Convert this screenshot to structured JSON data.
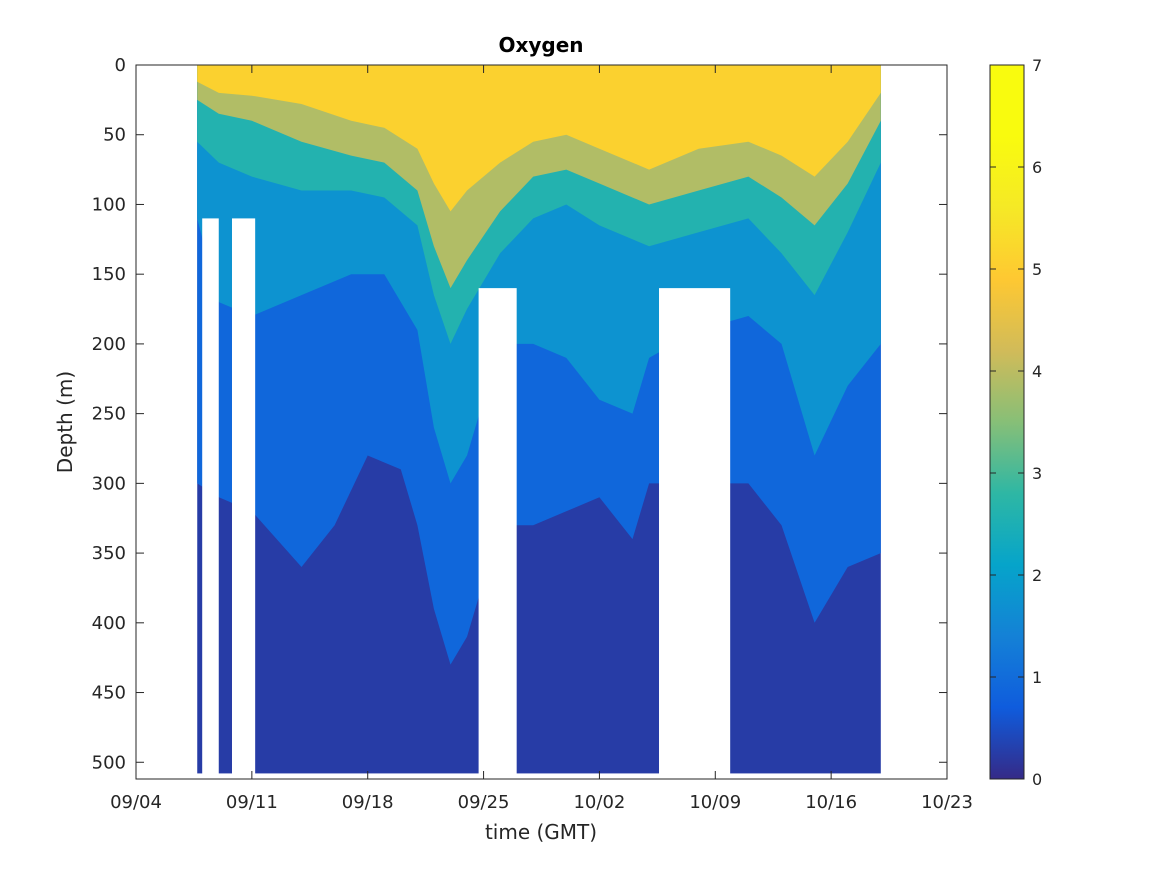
{
  "chart_data": {
    "type": "heatmap",
    "title": "Oxygen",
    "xlabel": "time (GMT)",
    "ylabel": "Depth (m)",
    "xlim": [
      "2024-09-04",
      "2024-10-23"
    ],
    "x_tick_labels": [
      "09/04",
      "09/11",
      "09/18",
      "09/25",
      "10/02",
      "10/09",
      "10/16",
      "10/23"
    ],
    "ylim": [
      0,
      512
    ],
    "y_reversed": true,
    "y_ticks": [
      0,
      50,
      100,
      150,
      200,
      250,
      300,
      350,
      400,
      450,
      500
    ],
    "colorbar": {
      "limits": [
        0,
        7
      ],
      "ticks": [
        0,
        1,
        2,
        3,
        4,
        5,
        6,
        7
      ],
      "colormap": "parula"
    },
    "data_gaps": [
      {
        "start": "2024-09-08",
        "end": "2024-09-09",
        "from_depth": 110
      },
      {
        "start": "2024-09-09.8",
        "end": "2024-09-11.2",
        "from_depth": 110
      },
      {
        "start": "2024-09-24.7",
        "end": "2024-09-27",
        "from_depth": 160
      },
      {
        "start": "2024-10-05.6",
        "end": "2024-10-09.9",
        "from_depth": 160
      }
    ],
    "profile_start": "2024-09-07.7",
    "profile_end": "2024-10-19",
    "level_boundaries": [
      {
        "level": "5-6 / 4-5",
        "oxygen_threshold": 4.5,
        "points": [
          [
            "2024-09-07.7",
            12
          ],
          [
            "2024-09-09",
            20
          ],
          [
            "2024-09-11",
            22
          ],
          [
            "2024-09-14",
            28
          ],
          [
            "2024-09-17",
            40
          ],
          [
            "2024-09-19",
            45
          ],
          [
            "2024-09-21",
            60
          ],
          [
            "2024-09-22",
            85
          ],
          [
            "2024-09-23",
            105
          ],
          [
            "2024-09-24",
            90
          ],
          [
            "2024-09-26",
            70
          ],
          [
            "2024-09-28",
            55
          ],
          [
            "2024-09-30",
            50
          ],
          [
            "2024-10-02",
            60
          ],
          [
            "2024-10-05",
            75
          ],
          [
            "2024-10-08",
            60
          ],
          [
            "2024-10-11",
            55
          ],
          [
            "2024-10-13",
            65
          ],
          [
            "2024-10-15",
            80
          ],
          [
            "2024-10-17",
            55
          ],
          [
            "2024-10-19",
            20
          ]
        ]
      },
      {
        "level": "4-5 / 3-4",
        "oxygen_threshold": 3.5,
        "points": [
          [
            "2024-09-07.7",
            25
          ],
          [
            "2024-09-09",
            35
          ],
          [
            "2024-09-11",
            40
          ],
          [
            "2024-09-14",
            55
          ],
          [
            "2024-09-17",
            65
          ],
          [
            "2024-09-19",
            70
          ],
          [
            "2024-09-21",
            90
          ],
          [
            "2024-09-22",
            130
          ],
          [
            "2024-09-23",
            160
          ],
          [
            "2024-09-24",
            140
          ],
          [
            "2024-09-26",
            105
          ],
          [
            "2024-09-28",
            80
          ],
          [
            "2024-09-30",
            75
          ],
          [
            "2024-10-02",
            85
          ],
          [
            "2024-10-05",
            100
          ],
          [
            "2024-10-08",
            90
          ],
          [
            "2024-10-11",
            80
          ],
          [
            "2024-10-13",
            95
          ],
          [
            "2024-10-15",
            115
          ],
          [
            "2024-10-17",
            85
          ],
          [
            "2024-10-19",
            40
          ]
        ]
      },
      {
        "level": "3-4 / 2-3",
        "oxygen_threshold": 2.5,
        "points": [
          [
            "2024-09-07.7",
            55
          ],
          [
            "2024-09-09",
            70
          ],
          [
            "2024-09-11",
            80
          ],
          [
            "2024-09-14",
            90
          ],
          [
            "2024-09-17",
            90
          ],
          [
            "2024-09-19",
            95
          ],
          [
            "2024-09-21",
            115
          ],
          [
            "2024-09-22",
            165
          ],
          [
            "2024-09-23",
            200
          ],
          [
            "2024-09-24",
            175
          ],
          [
            "2024-09-26",
            135
          ],
          [
            "2024-09-28",
            110
          ],
          [
            "2024-09-30",
            100
          ],
          [
            "2024-10-02",
            115
          ],
          [
            "2024-10-05",
            130
          ],
          [
            "2024-10-08",
            120
          ],
          [
            "2024-10-11",
            110
          ],
          [
            "2024-10-13",
            135
          ],
          [
            "2024-10-15",
            165
          ],
          [
            "2024-10-17",
            120
          ],
          [
            "2024-10-19",
            70
          ]
        ]
      },
      {
        "level": "2-3 / 1-2",
        "oxygen_threshold": 1.5,
        "points": [
          [
            "2024-09-07.7",
            110
          ],
          [
            "2024-09-09",
            170
          ],
          [
            "2024-09-11",
            180
          ],
          [
            "2024-09-14",
            165
          ],
          [
            "2024-09-17",
            150
          ],
          [
            "2024-09-19",
            150
          ],
          [
            "2024-09-21",
            190
          ],
          [
            "2024-09-22",
            260
          ],
          [
            "2024-09-23",
            300
          ],
          [
            "2024-09-24",
            280
          ],
          [
            "2024-09-26",
            200
          ],
          [
            "2024-09-28",
            200
          ],
          [
            "2024-09-30",
            210
          ],
          [
            "2024-10-02",
            240
          ],
          [
            "2024-10-04",
            250
          ],
          [
            "2024-10-05",
            210
          ],
          [
            "2024-10-08",
            190
          ],
          [
            "2024-10-11",
            180
          ],
          [
            "2024-10-13",
            200
          ],
          [
            "2024-10-15",
            280
          ],
          [
            "2024-10-17",
            230
          ],
          [
            "2024-10-19",
            200
          ]
        ]
      },
      {
        "level": "1-2 / 0-1",
        "oxygen_threshold": 0.5,
        "points": [
          [
            "2024-09-07.7",
            300
          ],
          [
            "2024-09-09",
            310
          ],
          [
            "2024-09-11",
            320
          ],
          [
            "2024-09-14",
            360
          ],
          [
            "2024-09-16",
            330
          ],
          [
            "2024-09-18",
            280
          ],
          [
            "2024-09-20",
            290
          ],
          [
            "2024-09-21",
            330
          ],
          [
            "2024-09-22",
            390
          ],
          [
            "2024-09-23",
            430
          ],
          [
            "2024-09-24",
            410
          ],
          [
            "2024-09-26",
            330
          ],
          [
            "2024-09-28",
            330
          ],
          [
            "2024-09-30",
            320
          ],
          [
            "2024-10-02",
            310
          ],
          [
            "2024-10-04",
            340
          ],
          [
            "2024-10-05",
            300
          ],
          [
            "2024-10-08",
            300
          ],
          [
            "2024-10-11",
            300
          ],
          [
            "2024-10-13",
            330
          ],
          [
            "2024-10-15",
            400
          ],
          [
            "2024-10-17",
            360
          ],
          [
            "2024-10-19",
            350
          ]
        ]
      }
    ],
    "max_depth_sampled": 508
  }
}
